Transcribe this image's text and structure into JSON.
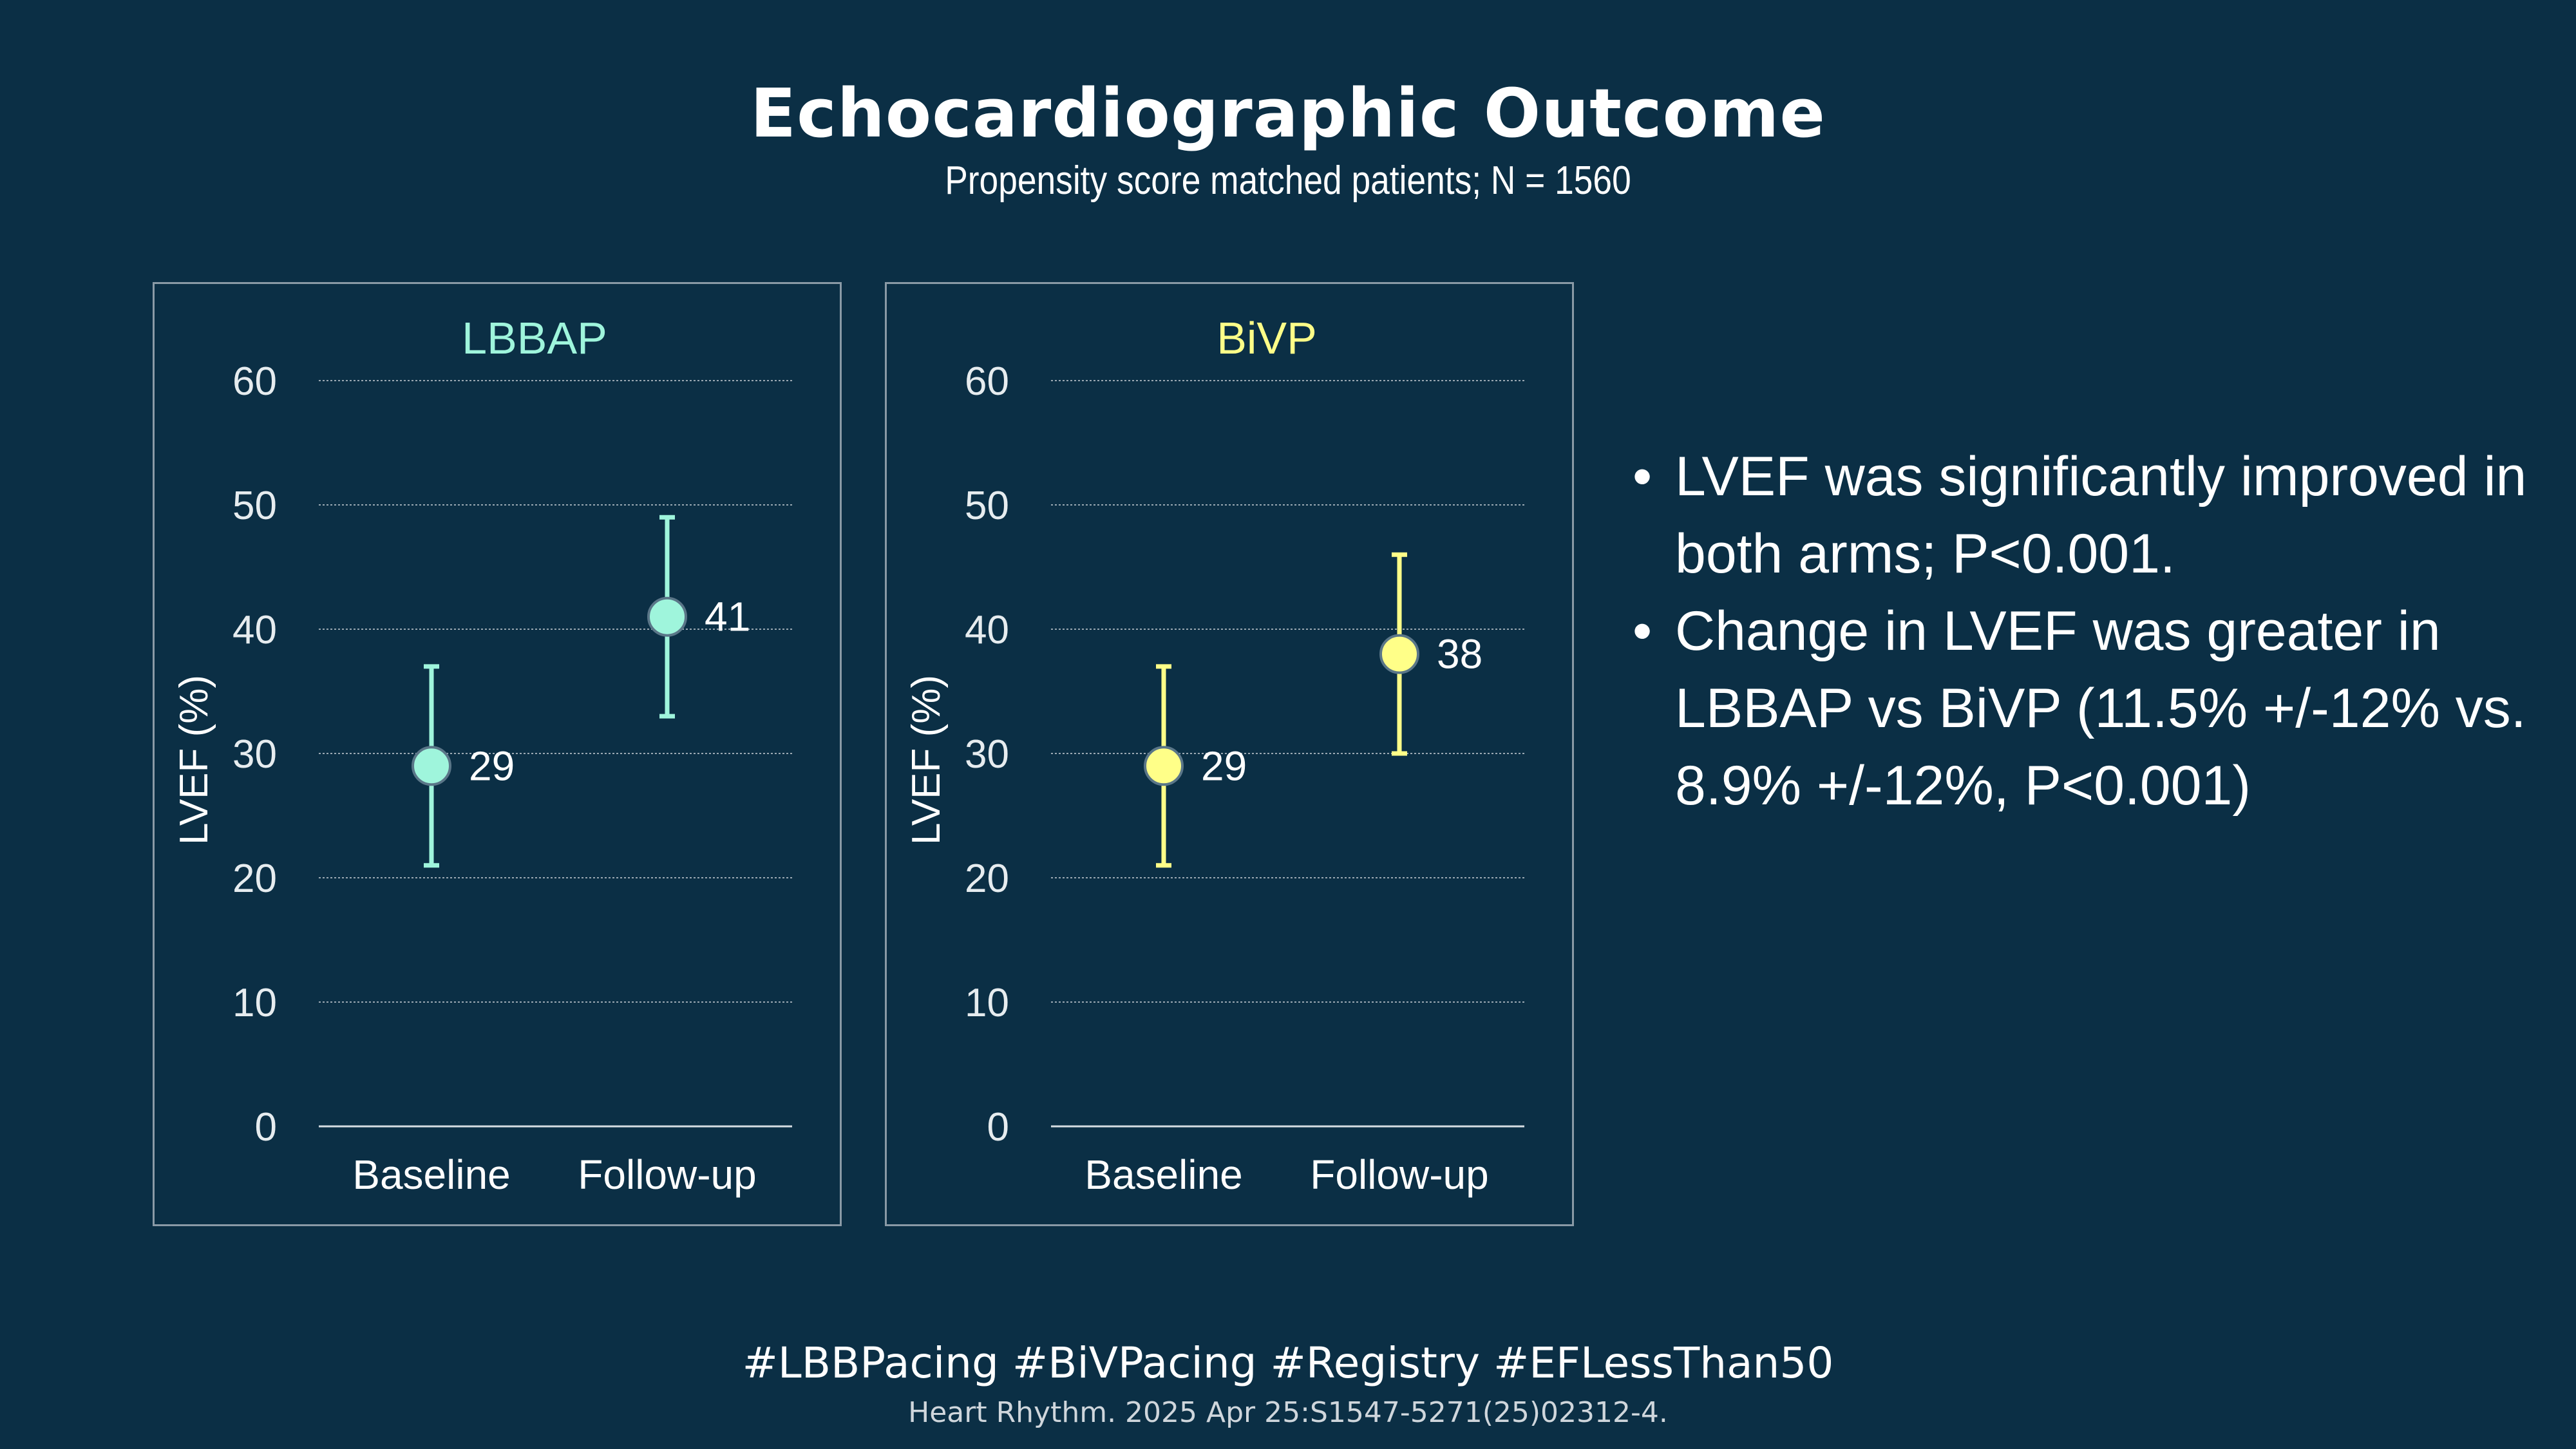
{
  "header": {
    "title": "Echocardiographic Outcome",
    "subtitle": "Propensity score matched patients; N = 1560"
  },
  "colors": {
    "background": "#0b2f45",
    "lbbap": "#9ff5dc",
    "bivp": "#ffff88",
    "grid": "#9aa8b2",
    "text": "#ffffff"
  },
  "chart_data": [
    {
      "type": "scatter",
      "title": "LBBAP",
      "ylabel": "LVEF (%)",
      "xlabel": "",
      "categories": [
        "Baseline",
        "Follow-up"
      ],
      "values": [
        29,
        41
      ],
      "error_low": [
        21,
        33
      ],
      "error_high": [
        37,
        49
      ],
      "data_labels": [
        "29",
        "41"
      ],
      "ylim": [
        0,
        60
      ],
      "yticks": [
        0,
        10,
        20,
        30,
        40,
        50,
        60
      ],
      "ytick_labels": [
        "0",
        "10",
        "20",
        "30",
        "40",
        "50",
        "60"
      ],
      "grid": true,
      "color": "#9ff5dc"
    },
    {
      "type": "scatter",
      "title": "BiVP",
      "ylabel": "LVEF (%)",
      "xlabel": "",
      "categories": [
        "Baseline",
        "Follow-up"
      ],
      "values": [
        29,
        38
      ],
      "error_low": [
        21,
        30
      ],
      "error_high": [
        37,
        46
      ],
      "data_labels": [
        "29",
        "38"
      ],
      "ylim": [
        0,
        60
      ],
      "yticks": [
        0,
        10,
        20,
        30,
        40,
        50,
        60
      ],
      "ytick_labels": [
        "0",
        "10",
        "20",
        "30",
        "40",
        "50",
        "60"
      ],
      "grid": true,
      "color": "#ffff88"
    }
  ],
  "bullets": [
    {
      "dot": "•",
      "text": "LVEF was significantly improved in both arms; P<0.001."
    },
    {
      "dot": "•",
      "text": "Change in LVEF was greater in LBBAP vs BiVP (11.5% +/-12% vs. 8.9% +/-12%, P<0.001)"
    }
  ],
  "footer": {
    "hashtags": "#LBBPacing #BiVPacing #Registry #EFLessThan50",
    "citation": "Heart Rhythm. 2025 Apr 25:S1547-5271(25)02312-4."
  }
}
